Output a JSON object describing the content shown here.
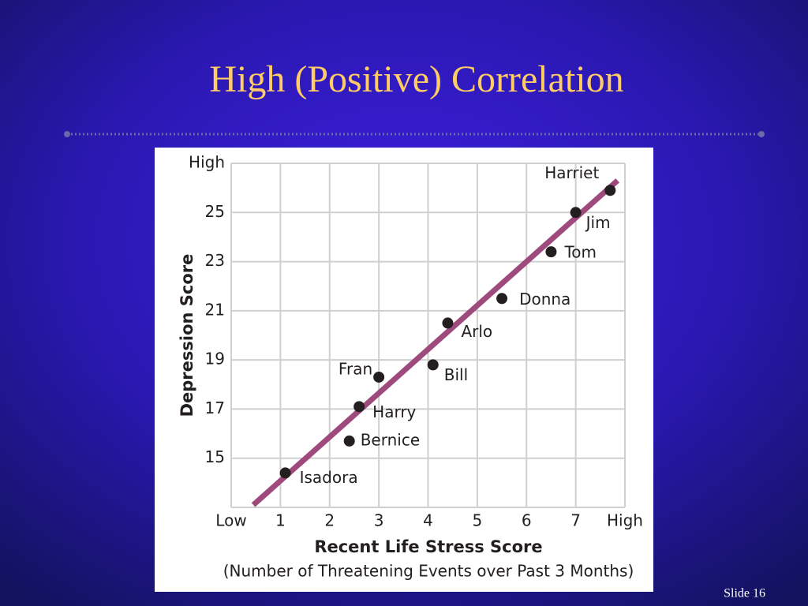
{
  "chart_data": {
    "type": "scatter",
    "title": "High (Positive) Correlation",
    "x_label": "Recent Life Stress Score",
    "x_sublabel": "(Number of Threatening Events over Past 3 Months)",
    "y_label": "Depression Score",
    "point_labels": [
      "Isadora",
      "Bernice",
      "Harry",
      "Fran",
      "Bill",
      "Arlo",
      "Donna",
      "Tom",
      "Jim",
      "Harriet"
    ],
    "x": [
      1.1,
      2.4,
      2.6,
      3.0,
      4.1,
      4.4,
      5.5,
      6.5,
      7.0,
      7.7
    ],
    "values": [
      14.4,
      15.7,
      17.1,
      18.3,
      18.8,
      20.5,
      21.5,
      23.4,
      25.0,
      25.9
    ],
    "color": "#231f20",
    "trend_line": {
      "x": [
        0.45,
        7.85
      ],
      "values": [
        13.1,
        26.3
      ],
      "color": "#9e4a7c"
    },
    "xlim": [
      0,
      8
    ],
    "xticks": [
      {
        "value": 0,
        "label": "Low"
      },
      1,
      2,
      3,
      4,
      5,
      6,
      7,
      {
        "value": 8,
        "label": "High"
      }
    ],
    "ylim": [
      13,
      27
    ],
    "yticks": [
      15,
      17,
      19,
      21,
      23,
      25,
      {
        "value": 27,
        "label": "High"
      }
    ],
    "grid": true
  },
  "footer": {
    "slide_number": "Slide 16"
  }
}
